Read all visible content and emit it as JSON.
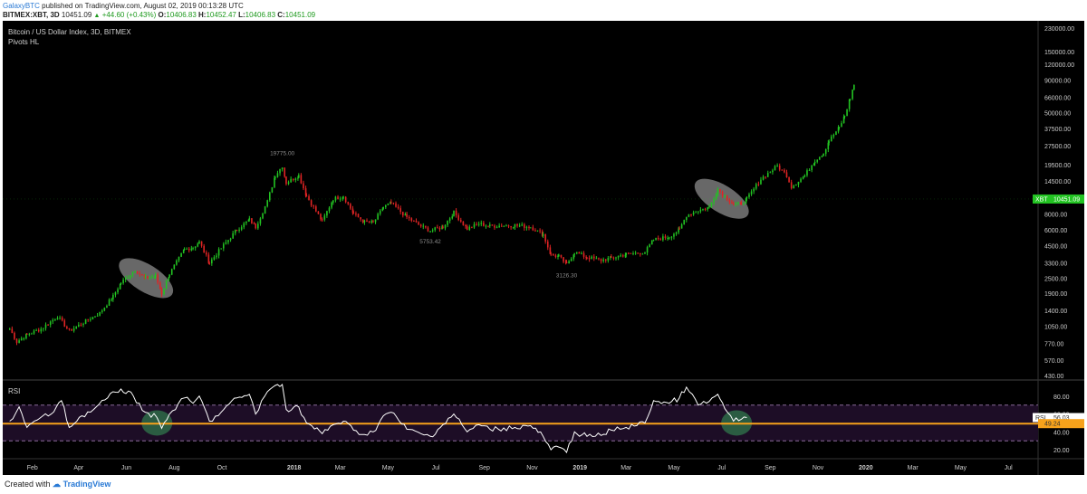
{
  "header": {
    "author": "GalaxyBTC",
    "published_text": " published on TradingView.com, August 02, 2019 00:13:28 UTC",
    "symbol": "BITMEX:XBT, 3D",
    "last_value": "10451.09",
    "change_text": "+44.60 (+0.43%)",
    "open_label": "O:",
    "open_value": "10406.83",
    "high_label": "H:",
    "high_value": "10452.47",
    "low_label": "L:",
    "low_value": "10406.83",
    "close_label": "C:",
    "close_value": "10451.09"
  },
  "chart_panel": {
    "title": "Bitcoin / US Dollar Index, 3D, BITMEX",
    "indicator": "Pivots HL"
  },
  "rsi_panel": {
    "title": "RSI"
  },
  "footer": {
    "created_with": "Created with",
    "brand": "TradingView"
  },
  "colors": {
    "background": "#000000",
    "up_candle": "#22c322",
    "down_candle": "#e02424",
    "rsi_line": "#ffffff",
    "rsi_ma_line": "#f7a21b",
    "rsi_band": "#1d0d26",
    "highlight_ellipse": "#bdbdbd",
    "highlight_circle": "#2e6b48",
    "price_tag": "#22c322"
  },
  "chart_data": [
    {
      "type": "candlestick",
      "title": "Bitcoin / US Dollar Index, 3D, BITMEX",
      "y_scale": "log",
      "y_ticks": [
        "230000.00",
        "150000.00",
        "120000.00",
        "90000.00",
        "66000.00",
        "50000.00",
        "37500.00",
        "27500.00",
        "19500.00",
        "14500.00",
        "10451.09",
        "8000.00",
        "6000.00",
        "4500.00",
        "3300.00",
        "2500.00",
        "1900.00",
        "1400.00",
        "1050.00",
        "770.00",
        "570.00",
        "430.00"
      ],
      "x_ticks": [
        "Feb",
        "Apr",
        "Jun",
        "Aug",
        "Oct",
        "2018",
        "Mar",
        "May",
        "Jul",
        "Sep",
        "Nov",
        "2019",
        "Mar",
        "May",
        "Jul",
        "Sep",
        "Nov",
        "2020",
        "Mar",
        "May",
        "Jul"
      ],
      "x_range": [
        "2017-01-01",
        "2020-08-01"
      ],
      "pivot_labels": [
        {
          "x": "2017-12-17",
          "label": "19775.00"
        },
        {
          "x": "2018-06-24",
          "label": "5753.42"
        },
        {
          "x": "2018-12-15",
          "label": "3126.30"
        }
      ],
      "last_price_tag": {
        "label": "XBT",
        "value": "10451.09"
      },
      "series": [
        {
          "points": [
            {
              "x": "2017-01-03",
              "y": 1000
            },
            {
              "x": "2017-01-12",
              "y": 790
            },
            {
              "x": "2017-01-25",
              "y": 900
            },
            {
              "x": "2017-02-12",
              "y": 1000
            },
            {
              "x": "2017-03-05",
              "y": 1250
            },
            {
              "x": "2017-03-20",
              "y": 960
            },
            {
              "x": "2017-04-10",
              "y": 1150
            },
            {
              "x": "2017-04-28",
              "y": 1330
            },
            {
              "x": "2017-05-15",
              "y": 1800
            },
            {
              "x": "2017-05-25",
              "y": 2300
            },
            {
              "x": "2017-06-12",
              "y": 2900
            },
            {
              "x": "2017-06-25",
              "y": 2500
            },
            {
              "x": "2017-07-08",
              "y": 2600
            },
            {
              "x": "2017-07-16",
              "y": 1900
            },
            {
              "x": "2017-07-26",
              "y": 2700
            },
            {
              "x": "2017-08-14",
              "y": 4200
            },
            {
              "x": "2017-08-25",
              "y": 4350
            },
            {
              "x": "2017-09-02",
              "y": 4800
            },
            {
              "x": "2017-09-15",
              "y": 3300
            },
            {
              "x": "2017-09-30",
              "y": 4300
            },
            {
              "x": "2017-10-20",
              "y": 6000
            },
            {
              "x": "2017-11-05",
              "y": 7200
            },
            {
              "x": "2017-11-13",
              "y": 6300
            },
            {
              "x": "2017-11-28",
              "y": 10000
            },
            {
              "x": "2017-12-08",
              "y": 16000
            },
            {
              "x": "2017-12-17",
              "y": 19000
            },
            {
              "x": "2017-12-22",
              "y": 14000
            },
            {
              "x": "2018-01-07",
              "y": 16000
            },
            {
              "x": "2018-01-17",
              "y": 11000
            },
            {
              "x": "2018-02-06",
              "y": 7000
            },
            {
              "x": "2018-02-20",
              "y": 10500
            },
            {
              "x": "2018-03-05",
              "y": 11000
            },
            {
              "x": "2018-03-18",
              "y": 8000
            },
            {
              "x": "2018-04-01",
              "y": 6900
            },
            {
              "x": "2018-04-12",
              "y": 6800
            },
            {
              "x": "2018-04-25",
              "y": 9000
            },
            {
              "x": "2018-05-05",
              "y": 9700
            },
            {
              "x": "2018-05-25",
              "y": 7500
            },
            {
              "x": "2018-06-12",
              "y": 6400
            },
            {
              "x": "2018-06-24",
              "y": 5900
            },
            {
              "x": "2018-07-10",
              "y": 6300
            },
            {
              "x": "2018-07-24",
              "y": 8200
            },
            {
              "x": "2018-08-10",
              "y": 6100
            },
            {
              "x": "2018-08-25",
              "y": 6700
            },
            {
              "x": "2018-09-08",
              "y": 6400
            },
            {
              "x": "2018-10-10",
              "y": 6500
            },
            {
              "x": "2018-10-30",
              "y": 6300
            },
            {
              "x": "2018-11-15",
              "y": 5500
            },
            {
              "x": "2018-11-25",
              "y": 3800
            },
            {
              "x": "2018-12-05",
              "y": 3700
            },
            {
              "x": "2018-12-15",
              "y": 3200
            },
            {
              "x": "2018-12-25",
              "y": 4000
            },
            {
              "x": "2019-01-10",
              "y": 3650
            },
            {
              "x": "2019-01-28",
              "y": 3450
            },
            {
              "x": "2019-02-10",
              "y": 3600
            },
            {
              "x": "2019-03-01",
              "y": 3850
            },
            {
              "x": "2019-03-25",
              "y": 4000
            },
            {
              "x": "2019-04-05",
              "y": 5000
            },
            {
              "x": "2019-04-25",
              "y": 5300
            },
            {
              "x": "2019-05-08",
              "y": 6000
            },
            {
              "x": "2019-05-17",
              "y": 7800
            },
            {
              "x": "2019-06-01",
              "y": 8500
            },
            {
              "x": "2019-06-15",
              "y": 9000
            },
            {
              "x": "2019-06-26",
              "y": 12500
            },
            {
              "x": "2019-07-05",
              "y": 11000
            },
            {
              "x": "2019-07-16",
              "y": 9500
            },
            {
              "x": "2019-07-26",
              "y": 9600
            },
            {
              "x": "2019-08-02",
              "y": 10451.09
            },
            {
              "x": "2019-08-20",
              "y": 15000
            },
            {
              "x": "2019-09-10",
              "y": 19000
            },
            {
              "x": "2019-09-22",
              "y": 16000
            },
            {
              "x": "2019-09-28",
              "y": 13000
            },
            {
              "x": "2019-10-15",
              "y": 16000
            },
            {
              "x": "2019-10-28",
              "y": 21000
            },
            {
              "x": "2019-11-08",
              "y": 24000
            },
            {
              "x": "2019-11-15",
              "y": 30000
            },
            {
              "x": "2019-11-28",
              "y": 38000
            },
            {
              "x": "2019-12-05",
              "y": 47000
            },
            {
              "x": "2019-12-12",
              "y": 65000
            },
            {
              "x": "2019-12-17",
              "y": 82000
            }
          ]
        }
      ],
      "annotations": [
        {
          "type": "ellipse",
          "x": "2017-06-26",
          "y": 2500
        },
        {
          "type": "ellipse",
          "x": "2019-07-01",
          "y": 10500
        }
      ]
    },
    {
      "type": "line",
      "title": "RSI",
      "y_ticks": [
        "80.00",
        "60.00",
        "40.00",
        "20.00"
      ],
      "current_value": "56.03",
      "ma_value": "49.24",
      "upper_band": 70,
      "lower_band": 30,
      "series": [
        {
          "points": [
            {
              "x": "2017-01-03",
              "y": 52
            },
            {
              "x": "2017-01-15",
              "y": 68
            },
            {
              "x": "2017-01-25",
              "y": 45
            },
            {
              "x": "2017-02-10",
              "y": 55
            },
            {
              "x": "2017-02-25",
              "y": 60
            },
            {
              "x": "2017-03-10",
              "y": 75
            },
            {
              "x": "2017-03-20",
              "y": 45
            },
            {
              "x": "2017-04-05",
              "y": 58
            },
            {
              "x": "2017-04-20",
              "y": 65
            },
            {
              "x": "2017-05-08",
              "y": 78
            },
            {
              "x": "2017-05-25",
              "y": 88
            },
            {
              "x": "2017-06-10",
              "y": 80
            },
            {
              "x": "2017-06-25",
              "y": 62
            },
            {
              "x": "2017-07-10",
              "y": 56
            },
            {
              "x": "2017-07-16",
              "y": 44
            },
            {
              "x": "2017-07-26",
              "y": 60
            },
            {
              "x": "2017-08-14",
              "y": 78
            },
            {
              "x": "2017-08-25",
              "y": 72
            },
            {
              "x": "2017-09-02",
              "y": 80
            },
            {
              "x": "2017-09-15",
              "y": 52
            },
            {
              "x": "2017-09-30",
              "y": 62
            },
            {
              "x": "2017-10-20",
              "y": 78
            },
            {
              "x": "2017-11-05",
              "y": 82
            },
            {
              "x": "2017-11-13",
              "y": 60
            },
            {
              "x": "2017-11-28",
              "y": 85
            },
            {
              "x": "2017-12-08",
              "y": 92
            },
            {
              "x": "2017-12-17",
              "y": 93
            },
            {
              "x": "2017-12-22",
              "y": 65
            },
            {
              "x": "2018-01-07",
              "y": 68
            },
            {
              "x": "2018-01-17",
              "y": 50
            },
            {
              "x": "2018-02-06",
              "y": 38
            },
            {
              "x": "2018-02-20",
              "y": 48
            },
            {
              "x": "2018-03-05",
              "y": 52
            },
            {
              "x": "2018-03-18",
              "y": 42
            },
            {
              "x": "2018-04-01",
              "y": 37
            },
            {
              "x": "2018-04-12",
              "y": 40
            },
            {
              "x": "2018-04-25",
              "y": 58
            },
            {
              "x": "2018-05-05",
              "y": 62
            },
            {
              "x": "2018-05-25",
              "y": 43
            },
            {
              "x": "2018-06-12",
              "y": 38
            },
            {
              "x": "2018-06-24",
              "y": 35
            },
            {
              "x": "2018-07-10",
              "y": 48
            },
            {
              "x": "2018-07-24",
              "y": 60
            },
            {
              "x": "2018-08-10",
              "y": 40
            },
            {
              "x": "2018-08-25",
              "y": 48
            },
            {
              "x": "2018-09-08",
              "y": 43
            },
            {
              "x": "2018-10-10",
              "y": 45
            },
            {
              "x": "2018-10-30",
              "y": 47
            },
            {
              "x": "2018-11-15",
              "y": 35
            },
            {
              "x": "2018-11-25",
              "y": 20
            },
            {
              "x": "2018-12-05",
              "y": 23
            },
            {
              "x": "2018-12-15",
              "y": 17
            },
            {
              "x": "2018-12-25",
              "y": 40
            },
            {
              "x": "2019-01-10",
              "y": 35
            },
            {
              "x": "2019-01-28",
              "y": 36
            },
            {
              "x": "2019-02-10",
              "y": 42
            },
            {
              "x": "2019-03-01",
              "y": 45
            },
            {
              "x": "2019-03-25",
              "y": 50
            },
            {
              "x": "2019-04-05",
              "y": 75
            },
            {
              "x": "2019-04-25",
              "y": 72
            },
            {
              "x": "2019-05-08",
              "y": 78
            },
            {
              "x": "2019-05-17",
              "y": 90
            },
            {
              "x": "2019-06-01",
              "y": 70
            },
            {
              "x": "2019-06-15",
              "y": 74
            },
            {
              "x": "2019-06-26",
              "y": 82
            },
            {
              "x": "2019-07-05",
              "y": 66
            },
            {
              "x": "2019-07-16",
              "y": 52
            },
            {
              "x": "2019-07-26",
              "y": 54
            },
            {
              "x": "2019-08-02",
              "y": 56
            }
          ]
        },
        {
          "points": [
            {
              "x": "2017-01-03",
              "y": 49.24
            },
            {
              "x": "2020-08-01",
              "y": 49.24
            }
          ]
        }
      ],
      "annotations": [
        {
          "type": "circle",
          "x": "2017-07-10",
          "y": 50
        },
        {
          "type": "circle",
          "x": "2019-07-20",
          "y": 50
        }
      ]
    }
  ]
}
